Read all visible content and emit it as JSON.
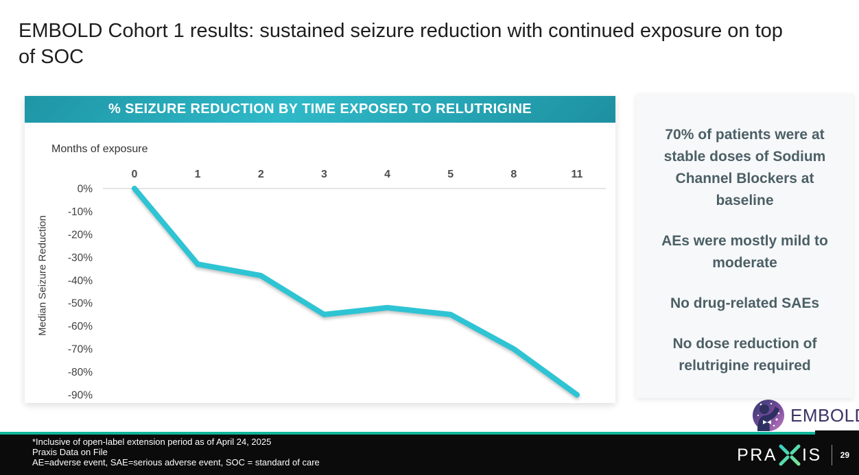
{
  "slide": {
    "title": "EMBOLD Cohort 1 results: sustained seizure reduction with continued exposure on top of SOC",
    "page_number": "29"
  },
  "chart": {
    "banner_title": "% SEIZURE REDUCTION BY TIME EXPOSED TO RELUTRIGINE",
    "x_axis_label": "Months of exposure",
    "y_axis_label": "Median Seizure Reduction"
  },
  "chart_data": {
    "type": "line",
    "title": "% SEIZURE REDUCTION BY TIME EXPOSED TO RELUTRIGINE",
    "xlabel": "Months of exposure",
    "ylabel": "Median Seizure Reduction",
    "categories": [
      "0",
      "1",
      "2",
      "3",
      "4",
      "5",
      "8",
      "11"
    ],
    "series": [
      {
        "name": "Median seizure reduction (%)",
        "values": [
          0,
          -33,
          -38,
          -55,
          -52,
          -55,
          -70,
          -90
        ]
      }
    ],
    "y_ticks": [
      "0%",
      "-10%",
      "-20%",
      "-30%",
      "-40%",
      "-50%",
      "-60%",
      "-70%",
      "-80%",
      "-90%"
    ],
    "ylim": [
      -90,
      0
    ],
    "grid": "single horizontal gridline at 0% only",
    "legend": "none",
    "line_color": "#2ec4d4"
  },
  "sidebar": {
    "items": [
      "70% of patients were at stable doses of Sodium Channel Blockers at baseline",
      "AEs were mostly mild to moderate",
      "No drug-related SAEs",
      "No dose reduction of relutrigine required"
    ]
  },
  "embold_logo": {
    "text": "EMBOLD"
  },
  "praxis_logo": {
    "pre": "PRA",
    "post": "IS"
  },
  "footer": {
    "lines": [
      "*Inclusive of open-label extension period as of April 24, 2025",
      "Praxis Data on File",
      "AE=adverse event, SAE=serious adverse event, SOC = standard of care"
    ]
  },
  "colors": {
    "accent_teal": "#2ec4d4",
    "banner_gradient_start": "#2fb9c8",
    "banner_gradient_end": "#1d90a0",
    "footer_border_teal": "#10b79b",
    "sidebar_text": "#4b5f66",
    "embold_purple": "#3a3366"
  }
}
